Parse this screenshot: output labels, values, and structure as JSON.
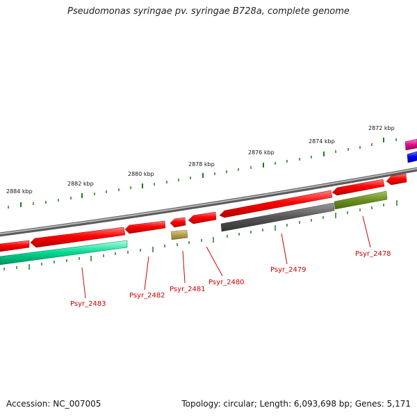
{
  "title": "Pseudomonas syringae pv. syringae B728a, complete genome",
  "footer": {
    "accession": "Accession: NC_007005",
    "topology": "Topology: circular; Length: 6,093,698 bp; Genes: 5,171"
  },
  "ruler": {
    "ticks": [
      "2884 kbp",
      "2882 kbp",
      "2880 kbp",
      "2878 kbp",
      "2876 kbp",
      "2874 kbp",
      "2872 kbp"
    ]
  },
  "genes": [
    {
      "label": "Psyr_2483",
      "color": "#00cc88"
    },
    {
      "label": "Psyr_2482",
      "color": "#ff0000"
    },
    {
      "label": "Psyr_2481",
      "color": "#b3a04d"
    },
    {
      "label": "Psyr_2480",
      "color": "#ff0000"
    },
    {
      "label": "Psyr_2479",
      "color": "#555555"
    },
    {
      "label": "Psyr_2478",
      "color": "#6b8e23"
    }
  ],
  "colors": {
    "cds": "#ff0000",
    "backbone": "#808080",
    "tick": "#1a7a1a",
    "label": "#cc0000",
    "pink": "#dd1188",
    "blue": "#0000ee"
  }
}
